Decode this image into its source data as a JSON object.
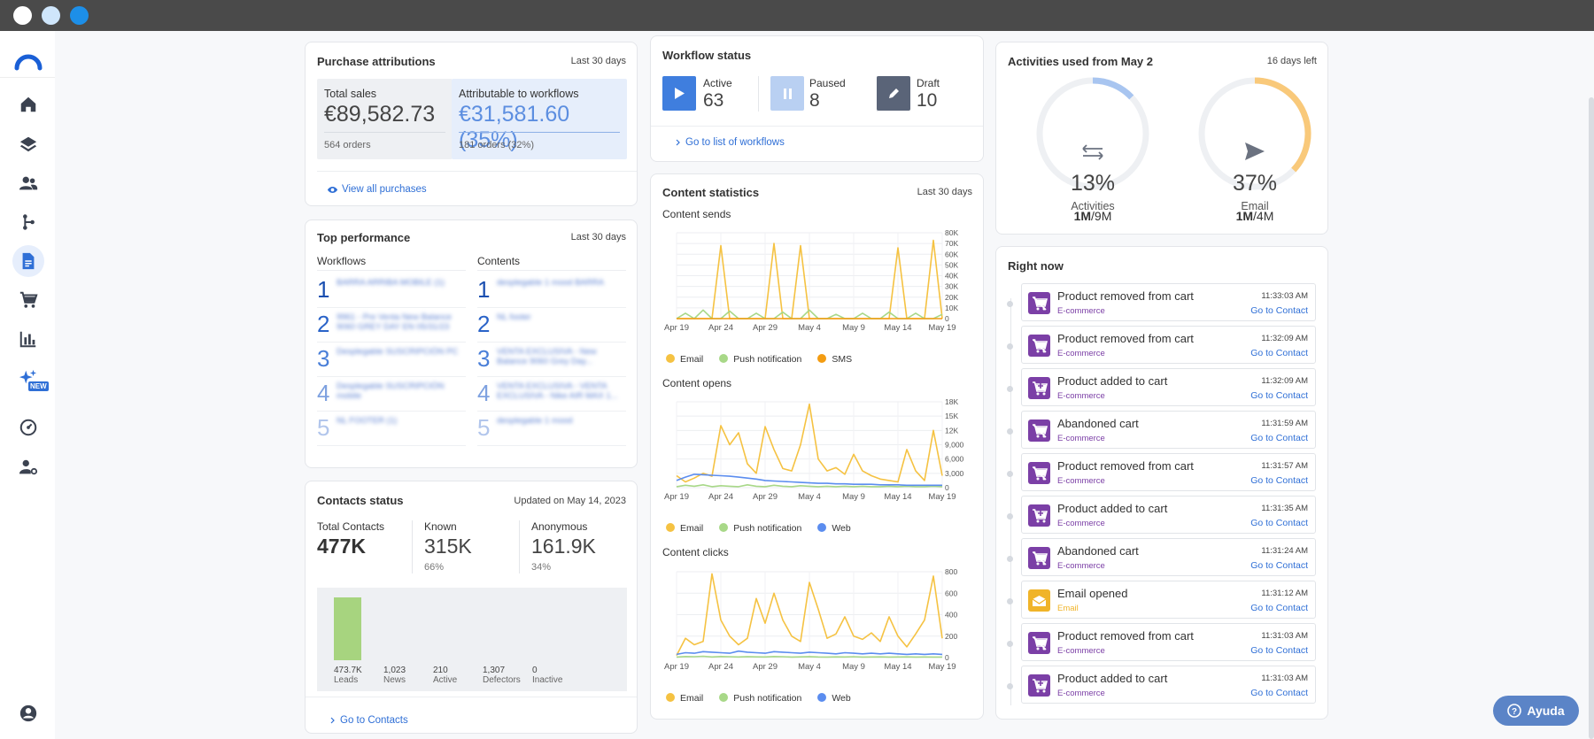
{
  "window": {
    "controls": [
      "close",
      "minimize",
      "maximize"
    ]
  },
  "colors": {
    "accent": "#2f6fd6",
    "email": "#f5c242",
    "push": "#a8d888",
    "sms": "#f39c12",
    "web": "#5b8def",
    "ecommerce": "#7b3fa6",
    "email_event": "#f0b429",
    "leads_bar": "#a7d47f"
  },
  "sidebar": {
    "icons": [
      "logo-icon",
      "home-icon",
      "layers-icon",
      "contacts-icon",
      "workflows-icon",
      "content-icon",
      "cart-icon",
      "analytics-icon",
      "ai-sparkle-icon",
      "dashboard-gauge-icon",
      "user-settings-icon",
      "account-icon"
    ],
    "new_badge": "NEW"
  },
  "purchase": {
    "title": "Purchase attributions",
    "period": "Last 30 days",
    "total_label": "Total sales",
    "total_value": "€89,582.73",
    "total_orders": "564 orders",
    "attr_label": "Attributable to workflows",
    "attr_value": "€31,581.60 (35%)",
    "attr_orders": "181 orders (32%)",
    "view_link": "View all purchases"
  },
  "top": {
    "title": "Top performance",
    "period": "Last 30 days",
    "workflows_header": "Workflows",
    "contents_header": "Contents",
    "workflows": [
      {
        "rank": "1",
        "text": "BARRA ARRIBA MOBILE (1)"
      },
      {
        "rank": "2",
        "text": "9961 - Pre Venta New Balance 9060 GREY DAY EN 05/31/23"
      },
      {
        "rank": "3",
        "text": "Desplegable SUSCRIPCIÓN PC"
      },
      {
        "rank": "4",
        "text": "Desplegable SUSCRIPCIÓN mobile"
      },
      {
        "rank": "5",
        "text": "NL FOOTER (1)"
      }
    ],
    "contents": [
      {
        "rank": "1",
        "text": "desplegable 1 mood BARRA"
      },
      {
        "rank": "2",
        "text": "NL footer"
      },
      {
        "rank": "3",
        "text": "VENTA EXCLUSIVA - New Balance 9060 Grey Day..."
      },
      {
        "rank": "4",
        "text": "VENTA EXCLUSIVA - VENTA EXCLUSIVA - Nike AIR MAX 1..."
      },
      {
        "rank": "5",
        "text": "desplegable 1 mood"
      }
    ]
  },
  "contacts": {
    "title": "Contacts status",
    "updated": "Updated on May 14, 2023",
    "total_label": "Total Contacts",
    "total_value": "477K",
    "known_label": "Known",
    "known_value": "315K",
    "known_pct": "66%",
    "anon_label": "Anonymous",
    "anon_value": "161.9K",
    "anon_pct": "34%",
    "bars": [
      {
        "value": "473.7K",
        "label": "Leads",
        "fraction": 0.993
      },
      {
        "value": "1,023",
        "label": "News",
        "fraction": 0.002
      },
      {
        "value": "210",
        "label": "Active",
        "fraction": 0.0
      },
      {
        "value": "1,307",
        "label": "Defectors",
        "fraction": 0.003
      },
      {
        "value": "0",
        "label": "Inactive",
        "fraction": 0.0
      }
    ],
    "link": "Go to Contacts"
  },
  "workflow_status": {
    "title": "Workflow status",
    "active_label": "Active",
    "active_value": "63",
    "paused_label": "Paused",
    "paused_value": "8",
    "draft_label": "Draft",
    "draft_value": "10",
    "link": "Go to list of workflows"
  },
  "content_stats": {
    "title": "Content statistics",
    "period": "Last 30 days",
    "x_ticks": [
      "Apr 19",
      "Apr 24",
      "Apr 29",
      "May 4",
      "May 9",
      "May 14",
      "May 19"
    ],
    "sends": {
      "subtitle": "Content sends",
      "y_ticks": [
        "80K",
        "70K",
        "60K",
        "50K",
        "40K",
        "30K",
        "20K",
        "10K",
        "0"
      ],
      "legend": [
        "Email",
        "Push notification",
        "SMS"
      ]
    },
    "opens": {
      "subtitle": "Content opens",
      "y_ticks": [
        "18K",
        "15K",
        "12K",
        "9,000",
        "6,000",
        "3,000",
        "0"
      ],
      "legend": [
        "Email",
        "Push notification",
        "Web"
      ]
    },
    "clicks": {
      "subtitle": "Content clicks",
      "y_ticks": [
        "800",
        "600",
        "400",
        "200",
        "0"
      ],
      "legend": [
        "Email",
        "Push notification",
        "Web"
      ]
    }
  },
  "chart_data": [
    {
      "type": "line",
      "title": "Content sends",
      "ylim": [
        0,
        80000
      ],
      "x": [
        "Apr 19",
        "Apr 20",
        "Apr 21",
        "Apr 22",
        "Apr 23",
        "Apr 24",
        "Apr 25",
        "Apr 26",
        "Apr 27",
        "Apr 28",
        "Apr 29",
        "Apr 30",
        "May 1",
        "May 2",
        "May 3",
        "May 4",
        "May 5",
        "May 6",
        "May 7",
        "May 8",
        "May 9",
        "May 10",
        "May 11",
        "May 12",
        "May 13",
        "May 14",
        "May 15",
        "May 16",
        "May 17",
        "May 18",
        "May 19"
      ],
      "series": [
        {
          "name": "Email",
          "values": [
            0,
            0,
            0,
            0,
            0,
            68000,
            0,
            0,
            0,
            0,
            0,
            70000,
            0,
            0,
            68000,
            0,
            0,
            0,
            0,
            0,
            0,
            0,
            0,
            0,
            0,
            66000,
            0,
            0,
            0,
            73000,
            0
          ]
        },
        {
          "name": "Push notification",
          "values": [
            0,
            5000,
            0,
            8000,
            0,
            0,
            7000,
            0,
            0,
            5000,
            0,
            0,
            6000,
            0,
            0,
            8000,
            0,
            0,
            4000,
            0,
            0,
            5000,
            0,
            0,
            6000,
            0,
            0,
            5000,
            0,
            0,
            4000
          ]
        },
        {
          "name": "SMS",
          "values": [
            0,
            0,
            0,
            0,
            0,
            0,
            0,
            0,
            0,
            0,
            0,
            0,
            0,
            0,
            0,
            0,
            0,
            0,
            0,
            0,
            0,
            0,
            0,
            0,
            0,
            0,
            0,
            0,
            0,
            0,
            0
          ]
        }
      ]
    },
    {
      "type": "line",
      "title": "Content opens",
      "ylim": [
        0,
        18000
      ],
      "x": [
        "Apr 19",
        "Apr 20",
        "Apr 21",
        "Apr 22",
        "Apr 23",
        "Apr 24",
        "Apr 25",
        "Apr 26",
        "Apr 27",
        "Apr 28",
        "Apr 29",
        "Apr 30",
        "May 1",
        "May 2",
        "May 3",
        "May 4",
        "May 5",
        "May 6",
        "May 7",
        "May 8",
        "May 9",
        "May 10",
        "May 11",
        "May 12",
        "May 13",
        "May 14",
        "May 15",
        "May 16",
        "May 17",
        "May 18",
        "May 19"
      ],
      "series": [
        {
          "name": "Email",
          "values": [
            2500,
            1200,
            2000,
            3000,
            2400,
            13000,
            9000,
            11500,
            5000,
            3000,
            12800,
            8000,
            4000,
            3500,
            9000,
            17500,
            6000,
            3500,
            4200,
            2800,
            7000,
            3500,
            2500,
            1800,
            1500,
            1200,
            8000,
            3500,
            1500,
            12000,
            2500
          ]
        },
        {
          "name": "Push notification",
          "values": [
            200,
            500,
            300,
            600,
            200,
            400,
            300,
            200,
            600,
            300,
            200,
            500,
            300,
            200,
            400,
            300,
            200,
            300,
            200,
            300,
            200,
            300,
            200,
            200,
            300,
            200,
            300,
            200,
            200,
            300,
            200
          ]
        },
        {
          "name": "Web",
          "values": [
            1500,
            2200,
            2800,
            2700,
            2600,
            2500,
            2400,
            2200,
            2000,
            1800,
            1500,
            1400,
            1300,
            1200,
            1100,
            1000,
            900,
            900,
            800,
            800,
            700,
            700,
            700,
            600,
            600,
            600,
            500,
            500,
            500,
            500,
            500
          ]
        }
      ]
    },
    {
      "type": "line",
      "title": "Content clicks",
      "ylim": [
        0,
        800
      ],
      "x": [
        "Apr 19",
        "Apr 20",
        "Apr 21",
        "Apr 22",
        "Apr 23",
        "Apr 24",
        "Apr 25",
        "Apr 26",
        "Apr 27",
        "Apr 28",
        "Apr 29",
        "Apr 30",
        "May 1",
        "May 2",
        "May 3",
        "May 4",
        "May 5",
        "May 6",
        "May 7",
        "May 8",
        "May 9",
        "May 10",
        "May 11",
        "May 12",
        "May 13",
        "May 14",
        "May 15",
        "May 16",
        "May 17",
        "May 18",
        "May 19"
      ],
      "series": [
        {
          "name": "Email",
          "values": [
            20,
            180,
            120,
            150,
            780,
            350,
            200,
            120,
            180,
            550,
            320,
            600,
            350,
            200,
            150,
            700,
            450,
            180,
            220,
            380,
            200,
            170,
            230,
            150,
            380,
            200,
            100,
            220,
            350,
            760,
            180
          ]
        },
        {
          "name": "Push notification",
          "values": [
            5,
            10,
            8,
            12,
            6,
            10,
            8,
            6,
            9,
            7,
            6,
            10,
            8,
            5,
            7,
            9,
            6,
            5,
            7,
            6,
            8,
            5,
            6,
            7,
            5,
            6,
            7,
            5,
            6,
            5,
            5
          ]
        },
        {
          "name": "Web",
          "values": [
            30,
            45,
            40,
            55,
            50,
            45,
            40,
            60,
            50,
            45,
            40,
            55,
            50,
            45,
            40,
            50,
            45,
            40,
            35,
            45,
            40,
            35,
            40,
            35,
            40,
            35,
            30,
            35,
            30,
            35,
            30
          ]
        }
      ]
    }
  ],
  "activities": {
    "title": "Activities used from May 2",
    "days_left": "16 days left",
    "gauges": [
      {
        "pct": "13%",
        "fraction": 0.13,
        "label": "Activities",
        "used": "1M",
        "total": "/9M",
        "color": "#a8c5f0",
        "icon": "arrows-exchange-icon"
      },
      {
        "pct": "37%",
        "fraction": 0.37,
        "label": "Email",
        "used": "1M",
        "total": "/4M",
        "color": "#f9c97a",
        "icon": "send-icon"
      }
    ]
  },
  "right_now": {
    "title": "Right now",
    "items": [
      {
        "title": "Product removed from cart",
        "category": "E-commerce",
        "time": "11:33:03 AM",
        "link": "Go to Contact",
        "kind": "remove"
      },
      {
        "title": "Product removed from cart",
        "category": "E-commerce",
        "time": "11:32:09 AM",
        "link": "Go to Contact",
        "kind": "remove"
      },
      {
        "title": "Product added to cart",
        "category": "E-commerce",
        "time": "11:32:09 AM",
        "link": "Go to Contact",
        "kind": "add"
      },
      {
        "title": "Abandoned cart",
        "category": "E-commerce",
        "time": "11:31:59 AM",
        "link": "Go to Contact",
        "kind": "remove"
      },
      {
        "title": "Product removed from cart",
        "category": "E-commerce",
        "time": "11:31:57 AM",
        "link": "Go to Contact",
        "kind": "remove"
      },
      {
        "title": "Product added to cart",
        "category": "E-commerce",
        "time": "11:31:35 AM",
        "link": "Go to Contact",
        "kind": "add"
      },
      {
        "title": "Abandoned cart",
        "category": "E-commerce",
        "time": "11:31:24 AM",
        "link": "Go to Contact",
        "kind": "remove"
      },
      {
        "title": "Email opened",
        "category": "Email",
        "time": "11:31:12 AM",
        "link": "Go to Contact",
        "kind": "email"
      },
      {
        "title": "Product removed from cart",
        "category": "E-commerce",
        "time": "11:31:03 AM",
        "link": "Go to Contact",
        "kind": "remove"
      },
      {
        "title": "Product added to cart",
        "category": "E-commerce",
        "time": "11:31:03 AM",
        "link": "Go to Contact",
        "kind": "add"
      }
    ]
  },
  "help": {
    "label": "Ayuda"
  }
}
